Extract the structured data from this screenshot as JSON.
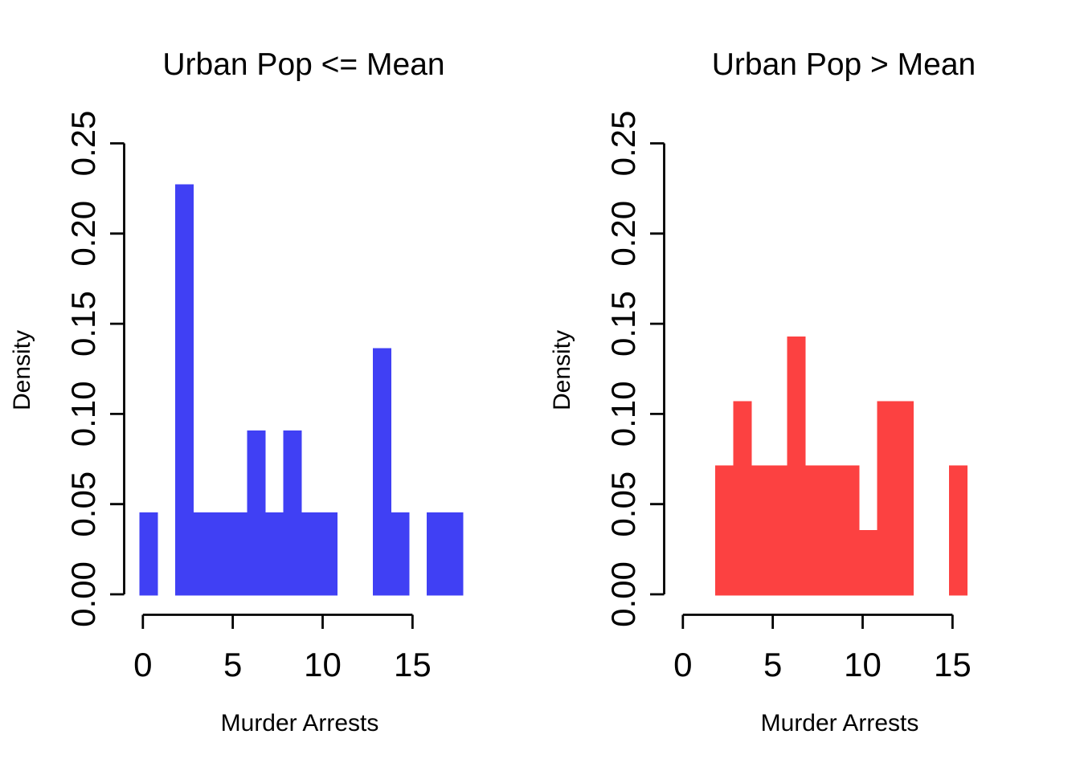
{
  "figure": {
    "background": "#FFFFFF",
    "text_color": "#000000",
    "axis_color": "#000000"
  },
  "chart_data": [
    {
      "type": "bar",
      "subtype": "histogram",
      "title": "Urban Pop <= Mean",
      "xlabel": "Murder Arrests",
      "ylabel": "Density",
      "bar_color": "#4040F4",
      "grid": false,
      "legend": null,
      "bin_width": 1,
      "xlim": [
        -0.92,
        18.52
      ],
      "ylim": [
        0,
        0.25
      ],
      "bins": [
        {
          "x0": -0.2,
          "density": 0.0455
        },
        {
          "x0": 1.8,
          "density": 0.2273
        },
        {
          "x0": 2.8,
          "density": 0.0455
        },
        {
          "x0": 3.8,
          "density": 0.0455
        },
        {
          "x0": 4.8,
          "density": 0.0455
        },
        {
          "x0": 5.8,
          "density": 0.0909
        },
        {
          "x0": 6.8,
          "density": 0.0455
        },
        {
          "x0": 7.8,
          "density": 0.0909
        },
        {
          "x0": 8.8,
          "density": 0.0455
        },
        {
          "x0": 9.8,
          "density": 0.0455
        },
        {
          "x0": 12.8,
          "density": 0.1364
        },
        {
          "x0": 13.8,
          "density": 0.0455
        },
        {
          "x0": 15.8,
          "density": 0.0455
        },
        {
          "x0": 16.8,
          "density": 0.0455
        }
      ],
      "x_ticks": [
        {
          "value": 0,
          "label": "0"
        },
        {
          "value": 5,
          "label": "5"
        },
        {
          "value": 10,
          "label": "10"
        },
        {
          "value": 15,
          "label": "15"
        }
      ],
      "y_ticks": [
        {
          "value": 0.0,
          "label": "0.00"
        },
        {
          "value": 0.05,
          "label": "0.05"
        },
        {
          "value": 0.1,
          "label": "0.10"
        },
        {
          "value": 0.15,
          "label": "0.15"
        },
        {
          "value": 0.2,
          "label": "0.20"
        },
        {
          "value": 0.25,
          "label": "0.25"
        }
      ]
    },
    {
      "type": "bar",
      "subtype": "histogram",
      "title": "Urban Pop > Mean",
      "xlabel": "Murder Arrests",
      "ylabel": "Density",
      "bar_color": "#FC4141",
      "grid": false,
      "legend": null,
      "bin_width": 1,
      "xlim": [
        -0.92,
        18.52
      ],
      "ylim": [
        0,
        0.25
      ],
      "bins": [
        {
          "x0": 1.8,
          "density": 0.0714
        },
        {
          "x0": 2.8,
          "density": 0.1071
        },
        {
          "x0": 3.8,
          "density": 0.0714
        },
        {
          "x0": 4.8,
          "density": 0.0714
        },
        {
          "x0": 5.8,
          "density": 0.1429
        },
        {
          "x0": 6.8,
          "density": 0.0714
        },
        {
          "x0": 7.8,
          "density": 0.0714
        },
        {
          "x0": 8.8,
          "density": 0.0714
        },
        {
          "x0": 9.8,
          "density": 0.0357
        },
        {
          "x0": 10.8,
          "density": 0.1071
        },
        {
          "x0": 11.8,
          "density": 0.1071
        },
        {
          "x0": 14.8,
          "density": 0.0714
        }
      ],
      "x_ticks": [
        {
          "value": 0,
          "label": "0"
        },
        {
          "value": 5,
          "label": "5"
        },
        {
          "value": 10,
          "label": "10"
        },
        {
          "value": 15,
          "label": "15"
        }
      ],
      "y_ticks": [
        {
          "value": 0.0,
          "label": "0.00"
        },
        {
          "value": 0.05,
          "label": "0.05"
        },
        {
          "value": 0.1,
          "label": "0.10"
        },
        {
          "value": 0.15,
          "label": "0.15"
        },
        {
          "value": 0.2,
          "label": "0.20"
        },
        {
          "value": 0.25,
          "label": "0.25"
        }
      ]
    }
  ]
}
